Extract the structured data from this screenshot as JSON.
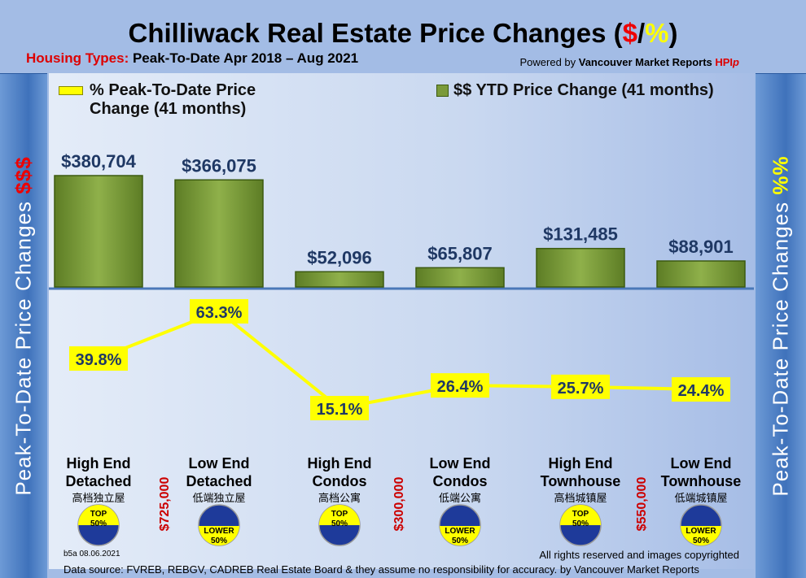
{
  "header": {
    "title_main": "Chilliwack Real Estate Price Changes (",
    "title_dollar": "$",
    "title_slash": "/",
    "title_pct": "%",
    "title_end": ")",
    "subtitle_label": "Housing Types:",
    "subtitle_text": " Peak-To-Date Apr 2018 – Aug 2021",
    "powered_prefix": "Powered by ",
    "powered_brand": "Vancouver Market Reports ",
    "powered_hpi": "HPI",
    "powered_p": "p"
  },
  "side_left": {
    "text": "Peak-To-Date Price Changes ",
    "accent": "$$$"
  },
  "side_right": {
    "text": "Peak-To-Date  Price  Changes  ",
    "accent": "%%"
  },
  "chart_data": {
    "type": "bar+line",
    "categories": [
      "High End Detached",
      "Low End Detached",
      "High End Condos",
      "Low End Condos",
      "High End Townhouse",
      "Low End Townhouse"
    ],
    "series": [
      {
        "name": "$$ YTD Price Change (41 months)",
        "type": "bar",
        "values": [
          380704,
          366075,
          52096,
          65807,
          131485,
          88901
        ],
        "labels": [
          "$380,704",
          "$366,075",
          "$52,096",
          "$65,807",
          "$131,485",
          "$88,901"
        ],
        "color": "#7a9a3a"
      },
      {
        "name": "% Peak-To-Date Price Change (41 months)",
        "type": "line",
        "values": [
          39.8,
          63.3,
          15.1,
          26.4,
          25.7,
          24.4
        ],
        "labels": [
          "39.8%",
          "63.3%",
          "15.1%",
          "26.4%",
          "25.7%",
          "24.4%"
        ],
        "color": "#ffff00"
      }
    ],
    "legend_line_1": "% Peak-To-Date Price",
    "legend_line_2": "Change (41 months)",
    "legend_bar": "$$ YTD Price Change (41 months)"
  },
  "categories": [
    {
      "l1": "High End",
      "l2": "Detached",
      "cn": "高档独立屋",
      "badge": "TOP",
      "pct": "50%",
      "top": true
    },
    {
      "l1": "Low End",
      "l2": "Detached",
      "cn": "低端独立屋",
      "badge": "LOWER",
      "pct": "50%",
      "top": false
    },
    {
      "l1": "High End",
      "l2": "Condos",
      "cn": "高档公寓",
      "badge": "TOP",
      "pct": "50%",
      "top": true
    },
    {
      "l1": "Low End",
      "l2": "Condos",
      "cn": "低端公寓",
      "badge": "LOWER",
      "pct": "50%",
      "top": false
    },
    {
      "l1": "High End",
      "l2": "Townhouse",
      "cn": "高档城镇屋",
      "badge": "TOP",
      "pct": "50%",
      "top": true
    },
    {
      "l1": "Low End",
      "l2": "Townhouse",
      "cn": "低端城镇屋",
      "badge": "LOWER",
      "pct": "50%",
      "top": false
    }
  ],
  "thresholds": [
    "$725,000",
    "$300,000",
    "$550,000"
  ],
  "footer": {
    "code": "b5a 08.06.2021",
    "rights": "All rights reserved and  images copyrighted",
    "source": "Data source: FVREB, REBGV, CADREB Real Estate Board & they assume no responsibility for accuracy. by Vancouver Market Reports"
  }
}
